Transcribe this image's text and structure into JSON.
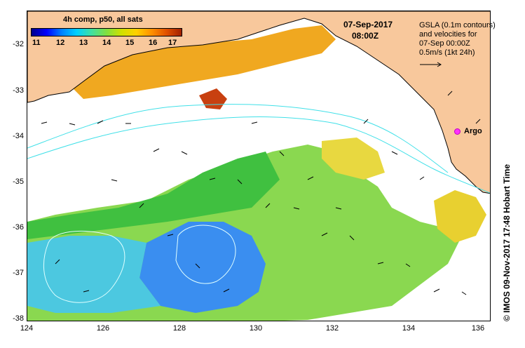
{
  "legend": {
    "title": "4h comp, p50, all sats",
    "colorbar_labels": [
      "11",
      "12",
      "13",
      "14",
      "15",
      "16",
      "17"
    ]
  },
  "header": {
    "date": "07-Sep-2017",
    "time": "08:00Z"
  },
  "gsla_note": {
    "line1": "GSLA (0.1m contours)",
    "line2": "and velocities for",
    "line3": "07-Sep 00:00Z",
    "line4": "0.5m/s (1kt 24h)"
  },
  "argo_label": "Argo",
  "credit": "© IMOS 09-Nov-2017 17:48 Hobart Time",
  "axes": {
    "y_ticks": [
      "-32",
      "-33",
      "-34",
      "-35",
      "-36",
      "-37",
      "-38"
    ],
    "x_ticks": [
      "124",
      "126",
      "128",
      "130",
      "132",
      "134",
      "136"
    ]
  },
  "colors": {
    "land": "#f8c89c",
    "contour": "#40e0e8",
    "argo": "#ff30ff"
  }
}
